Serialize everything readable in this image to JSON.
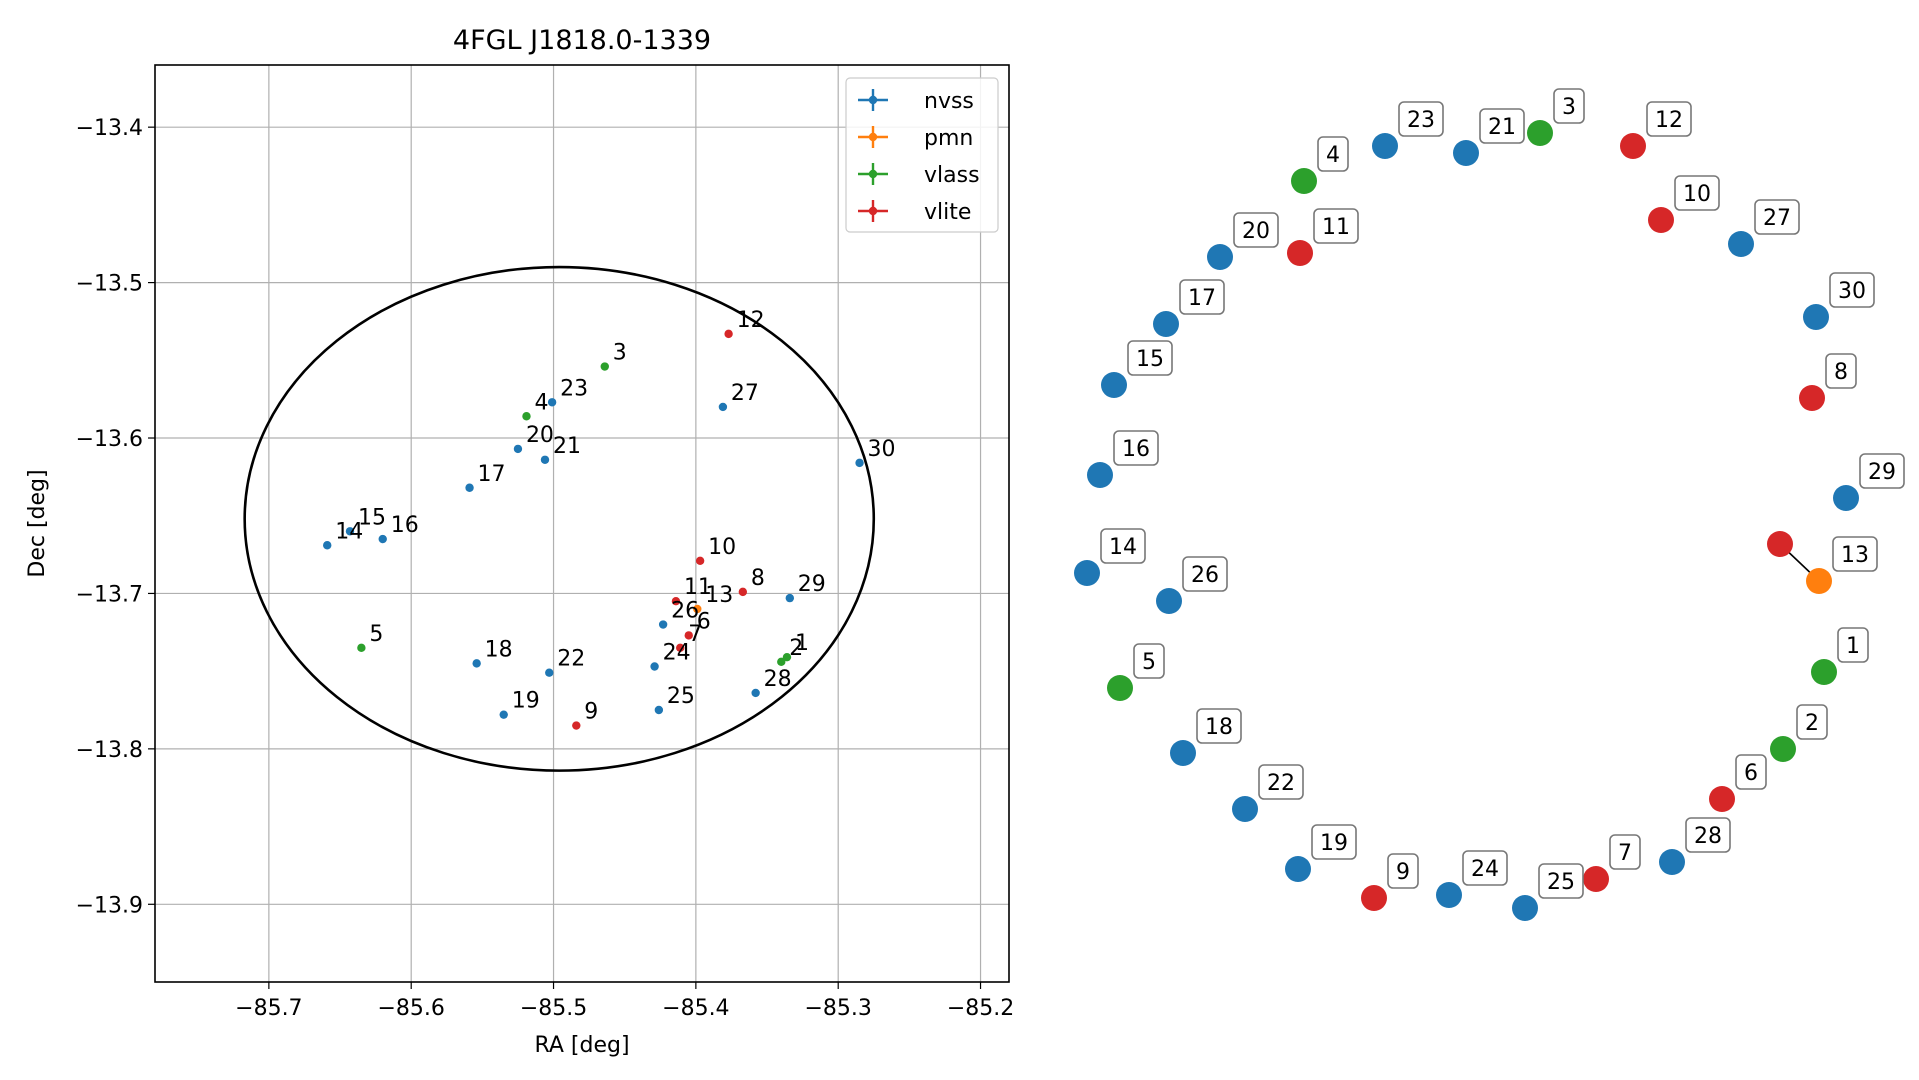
{
  "chart_data": [
    {
      "type": "scatter",
      "title": "4FGL J1818.0-1339",
      "xlabel": "RA [deg]",
      "ylabel": "Dec [deg]",
      "xlim": [
        -85.78,
        -85.18
      ],
      "ylim": [
        -13.95,
        -13.36
      ],
      "x_ticks": [
        -85.7,
        -85.6,
        -85.5,
        -85.4,
        -85.3,
        -85.2
      ],
      "x_tick_labels": [
        "−85.7",
        "−85.6",
        "−85.5",
        "−85.4",
        "−85.3",
        "−85.2"
      ],
      "y_ticks": [
        -13.4,
        -13.5,
        -13.6,
        -13.7,
        -13.8,
        -13.9
      ],
      "y_tick_labels": [
        "−13.4",
        "−13.5",
        "−13.6",
        "−13.7",
        "−13.8",
        "−13.9"
      ],
      "grid": true,
      "legend_position": "top-right",
      "ellipse": {
        "center_ra": -85.496,
        "center_dec": -13.652,
        "semi_axis_ra": 0.221,
        "semi_axis_dec": 0.162,
        "color": "#000000"
      },
      "series": [
        {
          "name": "nvss",
          "color": "#1f77b4",
          "points": [
            {
              "id": "14",
              "ra": -85.659,
              "dec": -13.669
            },
            {
              "id": "15",
              "ra": -85.643,
              "dec": -13.66
            },
            {
              "id": "16",
              "ra": -85.62,
              "dec": -13.665
            },
            {
              "id": "17",
              "ra": -85.559,
              "dec": -13.632
            },
            {
              "id": "20",
              "ra": -85.525,
              "dec": -13.607
            },
            {
              "id": "21",
              "ra": -85.506,
              "dec": -13.614
            },
            {
              "id": "23",
              "ra": -85.501,
              "dec": -13.577
            },
            {
              "id": "27",
              "ra": -85.381,
              "dec": -13.58
            },
            {
              "id": "30",
              "ra": -85.285,
              "dec": -13.616
            },
            {
              "id": "29",
              "ra": -85.334,
              "dec": -13.703
            },
            {
              "id": "26",
              "ra": -85.423,
              "dec": -13.72
            },
            {
              "id": "18",
              "ra": -85.554,
              "dec": -13.745
            },
            {
              "id": "22",
              "ra": -85.503,
              "dec": -13.751
            },
            {
              "id": "19",
              "ra": -85.535,
              "dec": -13.778
            },
            {
              "id": "24",
              "ra": -85.429,
              "dec": -13.747
            },
            {
              "id": "25",
              "ra": -85.426,
              "dec": -13.775
            },
            {
              "id": "28",
              "ra": -85.358,
              "dec": -13.764
            }
          ]
        },
        {
          "name": "pmn",
          "color": "#ff7f0e",
          "points": [
            {
              "id": "13",
              "ra": -85.399,
              "dec": -13.71
            }
          ]
        },
        {
          "name": "vlass",
          "color": "#2ca02c",
          "points": [
            {
              "id": "3",
              "ra": -85.464,
              "dec": -13.554
            },
            {
              "id": "4",
              "ra": -85.519,
              "dec": -13.586
            },
            {
              "id": "5",
              "ra": -85.635,
              "dec": -13.735
            },
            {
              "id": "1",
              "ra": -85.336,
              "dec": -13.741
            },
            {
              "id": "2",
              "ra": -85.34,
              "dec": -13.744
            }
          ]
        },
        {
          "name": "vlite",
          "color": "#d62728",
          "points": [
            {
              "id": "12",
              "ra": -85.377,
              "dec": -13.533
            },
            {
              "id": "10",
              "ra": -85.397,
              "dec": -13.679
            },
            {
              "id": "8",
              "ra": -85.367,
              "dec": -13.699
            },
            {
              "id": "11",
              "ra": -85.414,
              "dec": -13.705
            },
            {
              "id": "6",
              "ra": -85.405,
              "dec": -13.727
            },
            {
              "id": "7",
              "ra": -85.411,
              "dec": -13.735
            },
            {
              "id": "9",
              "ra": -85.484,
              "dec": -13.785
            }
          ]
        }
      ]
    },
    {
      "type": "scatter",
      "title": "",
      "grid": false,
      "description_layout": "ring",
      "points": [
        {
          "id": "23",
          "series": "nvss"
        },
        {
          "id": "21",
          "series": "nvss"
        },
        {
          "id": "3",
          "series": "vlass"
        },
        {
          "id": "12",
          "series": "vlite"
        },
        {
          "id": "4",
          "series": "vlass"
        },
        {
          "id": "10",
          "series": "vlite"
        },
        {
          "id": "27",
          "series": "nvss"
        },
        {
          "id": "20",
          "series": "nvss"
        },
        {
          "id": "11",
          "series": "vlite"
        },
        {
          "id": "30",
          "series": "nvss"
        },
        {
          "id": "17",
          "series": "nvss"
        },
        {
          "id": "15",
          "series": "nvss"
        },
        {
          "id": "8",
          "series": "vlite"
        },
        {
          "id": "16",
          "series": "nvss"
        },
        {
          "id": "29",
          "series": "nvss"
        },
        {
          "id": "14",
          "series": "nvss"
        },
        {
          "id": "13",
          "series": "pmn",
          "linked_to": "13r"
        },
        {
          "id": "13r",
          "series": "vlite",
          "label": ""
        },
        {
          "id": "26",
          "series": "nvss"
        },
        {
          "id": "1",
          "series": "vlass"
        },
        {
          "id": "5",
          "series": "vlass"
        },
        {
          "id": "2",
          "series": "vlass"
        },
        {
          "id": "18",
          "series": "nvss"
        },
        {
          "id": "6",
          "series": "vlite"
        },
        {
          "id": "22",
          "series": "nvss"
        },
        {
          "id": "28",
          "series": "nvss"
        },
        {
          "id": "19",
          "series": "nvss"
        },
        {
          "id": "7",
          "series": "vlite"
        },
        {
          "id": "9",
          "series": "vlite"
        },
        {
          "id": "24",
          "series": "nvss"
        },
        {
          "id": "25",
          "series": "nvss"
        }
      ]
    }
  ],
  "colors": {
    "nvss": "#1f77b4",
    "pmn": "#ff7f0e",
    "vlass": "#2ca02c",
    "vlite": "#d62728"
  }
}
